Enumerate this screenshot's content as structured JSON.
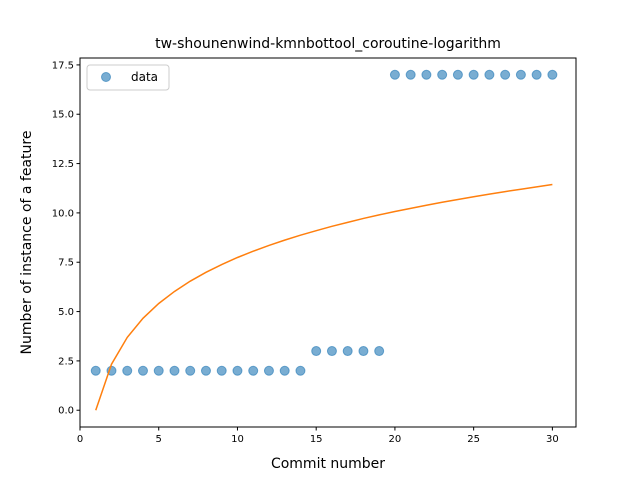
{
  "chart_data": {
    "type": "scatter",
    "title": "tw-shounenwind-kmnbottool_coroutine-logarithm",
    "xlabel": "Commit number",
    "ylabel": "Number of instance of a feature",
    "xlim": [
      0,
      31.5
    ],
    "ylim": [
      -0.85,
      17.85
    ],
    "xticks": [
      0,
      5,
      10,
      15,
      20,
      25,
      30
    ],
    "yticks": [
      0.0,
      2.5,
      5.0,
      7.5,
      10.0,
      12.5,
      15.0,
      17.5
    ],
    "xtick_labels": [
      "0",
      "5",
      "10",
      "15",
      "20",
      "25",
      "30"
    ],
    "ytick_labels": [
      "0.0",
      "2.5",
      "5.0",
      "7.5",
      "10.0",
      "12.5",
      "15.0",
      "17.5"
    ],
    "legend": {
      "position": "top-left",
      "entries": [
        "data"
      ]
    },
    "grid": false,
    "series": [
      {
        "name": "data",
        "kind": "scatter",
        "color": "#1f77b4",
        "x": [
          1,
          2,
          3,
          4,
          5,
          6,
          7,
          8,
          9,
          10,
          11,
          12,
          13,
          14,
          15,
          16,
          17,
          18,
          19,
          20,
          21,
          22,
          23,
          24,
          25,
          26,
          27,
          28,
          29,
          30
        ],
        "y": [
          2,
          2,
          2,
          2,
          2,
          2,
          2,
          2,
          2,
          2,
          2,
          2,
          2,
          2,
          3,
          3,
          3,
          3,
          3,
          17,
          17,
          17,
          17,
          17,
          17,
          17,
          17,
          17,
          17,
          17
        ]
      },
      {
        "kind": "line",
        "color": "#ff7f0e",
        "x": [
          1,
          2,
          3,
          4,
          5,
          6,
          7,
          8,
          9,
          10,
          11,
          12,
          13,
          14,
          15,
          16,
          17,
          18,
          19,
          20,
          21,
          22,
          23,
          24,
          25,
          26,
          27,
          28,
          29,
          30
        ],
        "y": [
          0.0,
          2.33,
          3.69,
          4.66,
          5.41,
          6.02,
          6.54,
          6.99,
          7.38,
          7.74,
          8.06,
          8.35,
          8.62,
          8.87,
          9.1,
          9.32,
          9.52,
          9.72,
          9.9,
          10.07,
          10.23,
          10.39,
          10.54,
          10.68,
          10.82,
          10.95,
          11.08,
          11.2,
          11.32,
          11.44
        ]
      }
    ]
  }
}
